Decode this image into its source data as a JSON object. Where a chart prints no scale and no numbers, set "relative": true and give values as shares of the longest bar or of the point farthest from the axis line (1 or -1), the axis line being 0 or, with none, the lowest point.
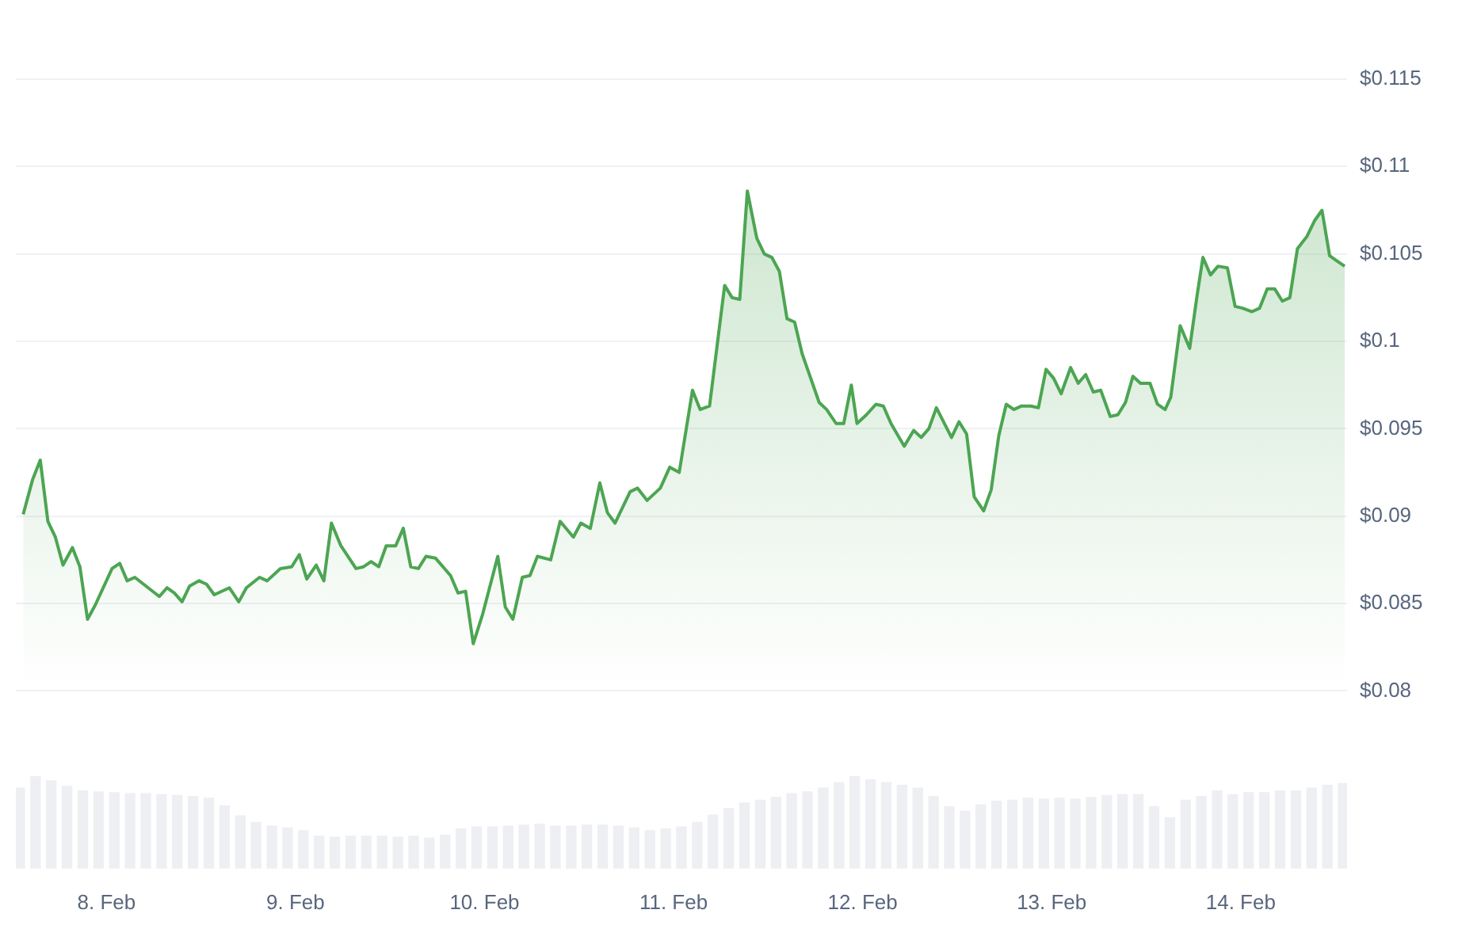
{
  "chart_data": [
    {
      "type": "area",
      "grid": "y",
      "legend": false,
      "tick_labels": "y",
      "xlim": [
        "--02-07T12:30",
        "--02-14T13:30"
      ],
      "ylim": [
        0.08,
        0.115
      ],
      "yticks": [
        {
          "value": 0.08,
          "label": "$0.08"
        },
        {
          "value": 0.085,
          "label": "$0.085"
        },
        {
          "value": 0.09,
          "label": "$0.09"
        },
        {
          "value": 0.095,
          "label": "$0.095"
        },
        {
          "value": 0.1,
          "label": "$0.1"
        },
        {
          "value": 0.105,
          "label": "$0.105"
        },
        {
          "value": 0.11,
          "label": "$0.11"
        },
        {
          "value": 0.115,
          "label": "$0.115"
        }
      ],
      "series": [
        {
          "color": "#4ca552",
          "x": [
            "--02-07T13:26",
            "--02-07T14:38",
            "--02-07T15:36",
            "--02-07T16:34",
            "--02-07T17:31",
            "--02-07T18:29",
            "--02-07T19:41",
            "--02-07T20:38",
            "--02-07T21:36",
            "--02-07T22:34",
            "--02-08T00:43",
            "--02-08T01:41",
            "--02-08T02:38",
            "--02-08T03:36",
            "--02-08T06:43",
            "--02-08T07:41",
            "--02-08T08:38",
            "--02-08T09:36",
            "--02-08T10:34",
            "--02-08T11:46",
            "--02-08T12:43",
            "--02-08T13:41",
            "--02-08T15:36",
            "--02-08T16:48",
            "--02-08T17:46",
            "--02-08T19:26",
            "--02-08T20:24",
            "--02-08T22:05",
            "--02-08T23:31",
            "--02-09T00:29",
            "--02-09T01:26",
            "--02-09T02:38",
            "--02-09T03:36",
            "--02-09T04:34",
            "--02-09T05:46",
            "--02-09T07:41",
            "--02-09T08:38",
            "--02-09T09:36",
            "--02-09T10:34",
            "--02-09T11:31",
            "--02-09T12:43",
            "--02-09T13:41",
            "--02-09T14:38",
            "--02-09T15:36",
            "--02-09T16:34",
            "--02-09T17:46",
            "--02-09T19:41",
            "--02-09T20:38",
            "--02-09T21:36",
            "--02-09T22:34",
            "--02-09T23:46",
            "--02-10T01:41",
            "--02-10T02:38",
            "--02-10T03:36",
            "--02-10T04:48",
            "--02-10T05:46",
            "--02-10T06:43",
            "--02-10T08:24",
            "--02-10T09:36",
            "--02-10T11:17",
            "--02-10T12:14",
            "--02-10T13:26",
            "--02-10T14:38",
            "--02-10T15:36",
            "--02-10T16:34",
            "--02-10T18:29",
            "--02-10T19:26",
            "--02-10T20:38",
            "--02-10T22:19",
            "--02-10T23:31",
            "--02-11T00:43",
            "--02-11T02:24",
            "--02-11T03:22",
            "--02-11T04:34",
            "--02-11T06:29",
            "--02-11T07:26",
            "--02-11T08:24",
            "--02-11T09:22",
            "--02-11T10:34",
            "--02-11T11:31",
            "--02-11T12:29",
            "--02-11T13:26",
            "--02-11T14:24",
            "--02-11T15:22",
            "--02-11T16:19",
            "--02-11T18:29",
            "--02-11T19:26",
            "--02-11T20:38",
            "--02-11T21:36",
            "--02-11T22:34",
            "--02-11T23:17",
            "--02-12T00:29",
            "--02-12T01:41",
            "--02-12T02:38",
            "--02-12T03:36",
            "--02-12T05:17",
            "--02-12T06:29",
            "--02-12T07:26",
            "--02-12T08:24",
            "--02-12T09:22",
            "--02-12T11:17",
            "--02-12T12:14",
            "--02-12T13:12",
            "--02-12T14:10",
            "--02-12T15:22",
            "--02-12T16:19",
            "--02-12T17:17",
            "--02-12T18:14",
            "--02-12T19:12",
            "--02-12T20:10",
            "--02-12T21:22",
            "--02-12T22:19",
            "--02-12T23:17",
            "--02-13T00:14",
            "--02-13T01:12",
            "--02-13T02:24",
            "--02-13T03:22",
            "--02-13T04:19",
            "--02-13T05:17",
            "--02-13T06:14",
            "--02-13T07:26",
            "--02-13T08:24",
            "--02-13T09:22",
            "--02-13T10:19",
            "--02-13T11:17",
            "--02-13T12:29",
            "--02-13T13:26",
            "--02-13T14:24",
            "--02-13T15:07",
            "--02-13T16:19",
            "--02-13T17:31",
            "--02-13T18:29",
            "--02-13T19:12",
            "--02-13T20:10",
            "--02-13T21:07",
            "--02-13T22:19",
            "--02-13T23:17",
            "--02-14T00:14",
            "--02-14T01:26",
            "--02-14T02:24",
            "--02-14T03:22",
            "--02-14T04:19",
            "--02-14T05:17",
            "--02-14T06:14",
            "--02-14T07:12",
            "--02-14T08:24",
            "--02-14T09:22",
            "--02-14T10:19",
            "--02-14T11:17",
            "--02-14T12:14",
            "--02-14T13:12"
          ],
          "values": [
            0.0901,
            0.0921,
            0.0932,
            0.0897,
            0.0888,
            0.0872,
            0.0882,
            0.0871,
            0.0841,
            0.0849,
            0.087,
            0.0873,
            0.0863,
            0.0865,
            0.0854,
            0.0859,
            0.0856,
            0.0851,
            0.086,
            0.0863,
            0.0861,
            0.0855,
            0.0859,
            0.0851,
            0.0859,
            0.0865,
            0.0863,
            0.087,
            0.0871,
            0.0878,
            0.0864,
            0.0872,
            0.0863,
            0.0896,
            0.0883,
            0.087,
            0.0871,
            0.0874,
            0.0871,
            0.0883,
            0.0883,
            0.0893,
            0.0871,
            0.087,
            0.0877,
            0.0876,
            0.0866,
            0.0856,
            0.0857,
            0.0827,
            0.0844,
            0.0877,
            0.0848,
            0.0841,
            0.0865,
            0.0866,
            0.0877,
            0.0875,
            0.0897,
            0.0888,
            0.0896,
            0.0893,
            0.0919,
            0.0902,
            0.0896,
            0.0914,
            0.0916,
            0.0909,
            0.0916,
            0.0928,
            0.0925,
            0.0972,
            0.0961,
            0.0963,
            0.1032,
            0.1025,
            0.1024,
            0.1086,
            0.1059,
            0.105,
            0.1048,
            0.104,
            0.1013,
            0.1011,
            0.0993,
            0.0965,
            0.0961,
            0.0953,
            0.0953,
            0.0975,
            0.0953,
            0.0958,
            0.0964,
            0.0963,
            0.0953,
            0.094,
            0.0949,
            0.0945,
            0.095,
            0.0962,
            0.0945,
            0.0954,
            0.0947,
            0.0911,
            0.0903,
            0.0915,
            0.0946,
            0.0964,
            0.0961,
            0.0963,
            0.0963,
            0.0962,
            0.0984,
            0.0979,
            0.097,
            0.0985,
            0.0976,
            0.0981,
            0.0971,
            0.0972,
            0.0957,
            0.0958,
            0.0965,
            0.098,
            0.0976,
            0.0976,
            0.0964,
            0.0961,
            0.0968,
            0.1009,
            0.0996,
            0.1027,
            0.1048,
            0.1038,
            0.1043,
            0.1042,
            0.102,
            0.1019,
            0.1017,
            0.1019,
            0.103,
            0.103,
            0.1023,
            0.1025,
            0.1053,
            0.106,
            0.1069,
            0.1075,
            0.1049,
            0.1046,
            0.1043
          ]
        }
      ]
    },
    {
      "type": "bar",
      "relative": true,
      "legend": false,
      "tick_labels": "x",
      "xlim": [
        "--02-07T12:30",
        "--02-14T13:30"
      ],
      "xticks": [
        {
          "value": "--02-08",
          "label": "8. Feb"
        },
        {
          "value": "--02-09",
          "label": "9. Feb"
        },
        {
          "value": "--02-10",
          "label": "10. Feb"
        },
        {
          "value": "--02-11",
          "label": "11. Feb"
        },
        {
          "value": "--02-12",
          "label": "12. Feb"
        },
        {
          "value": "--02-13",
          "label": "13. Feb"
        },
        {
          "value": "--02-14",
          "label": "14. Feb"
        }
      ],
      "x": [
        "--02-07T13:00",
        "--02-07T15:00",
        "--02-07T17:00",
        "--02-07T19:00",
        "--02-07T21:00",
        "--02-07T23:00",
        "--02-08T01:00",
        "--02-08T03:00",
        "--02-08T05:00",
        "--02-08T07:00",
        "--02-08T09:00",
        "--02-08T11:00",
        "--02-08T13:00",
        "--02-08T15:00",
        "--02-08T17:00",
        "--02-08T19:00",
        "--02-08T21:00",
        "--02-08T23:00",
        "--02-09T01:00",
        "--02-09T03:00",
        "--02-09T05:00",
        "--02-09T07:00",
        "--02-09T09:00",
        "--02-09T11:00",
        "--02-09T13:00",
        "--02-09T15:00",
        "--02-09T17:00",
        "--02-09T19:00",
        "--02-09T21:00",
        "--02-09T23:00",
        "--02-10T01:00",
        "--02-10T03:00",
        "--02-10T05:00",
        "--02-10T07:00",
        "--02-10T09:00",
        "--02-10T11:00",
        "--02-10T13:00",
        "--02-10T15:00",
        "--02-10T17:00",
        "--02-10T19:00",
        "--02-10T21:00",
        "--02-10T23:00",
        "--02-11T01:00",
        "--02-11T03:00",
        "--02-11T05:00",
        "--02-11T07:00",
        "--02-11T09:00",
        "--02-11T11:00",
        "--02-11T13:00",
        "--02-11T15:00",
        "--02-11T17:00",
        "--02-11T19:00",
        "--02-11T21:00",
        "--02-11T23:00",
        "--02-12T01:00",
        "--02-12T03:00",
        "--02-12T05:00",
        "--02-12T07:00",
        "--02-12T09:00",
        "--02-12T11:00",
        "--02-12T13:00",
        "--02-12T15:00",
        "--02-12T17:00",
        "--02-12T19:00",
        "--02-12T21:00",
        "--02-12T23:00",
        "--02-13T01:00",
        "--02-13T03:00",
        "--02-13T05:00",
        "--02-13T07:00",
        "--02-13T09:00",
        "--02-13T11:00",
        "--02-13T13:00",
        "--02-13T15:00",
        "--02-13T17:00",
        "--02-13T19:00",
        "--02-13T21:00",
        "--02-13T23:00",
        "--02-14T01:00",
        "--02-14T03:00",
        "--02-14T05:00",
        "--02-14T07:00",
        "--02-14T09:00",
        "--02-14T11:00",
        "--02-14T13:00"
      ],
      "series": [
        {
          "color": "#edeff3",
          "values": [
            0.87,
            1.0,
            0.95,
            0.89,
            0.84,
            0.83,
            0.82,
            0.81,
            0.81,
            0.8,
            0.79,
            0.78,
            0.76,
            0.68,
            0.57,
            0.5,
            0.46,
            0.44,
            0.41,
            0.35,
            0.34,
            0.35,
            0.35,
            0.35,
            0.34,
            0.35,
            0.33,
            0.36,
            0.43,
            0.45,
            0.45,
            0.46,
            0.47,
            0.48,
            0.46,
            0.46,
            0.47,
            0.47,
            0.46,
            0.44,
            0.41,
            0.43,
            0.45,
            0.5,
            0.58,
            0.65,
            0.71,
            0.74,
            0.77,
            0.81,
            0.83,
            0.87,
            0.93,
            1.0,
            0.96,
            0.93,
            0.9,
            0.87,
            0.78,
            0.67,
            0.62,
            0.69,
            0.73,
            0.74,
            0.76,
            0.75,
            0.76,
            0.75,
            0.77,
            0.79,
            0.8,
            0.8,
            0.67,
            0.55,
            0.74,
            0.78,
            0.84,
            0.8,
            0.82,
            0.82,
            0.84,
            0.84,
            0.87,
            0.9,
            0.92
          ]
        }
      ]
    }
  ]
}
